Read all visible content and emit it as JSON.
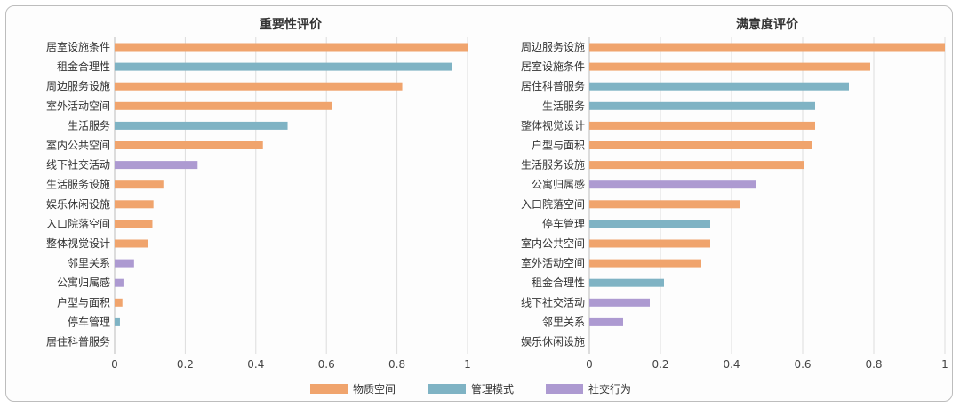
{
  "colors": {
    "物质空间": "#f0a46d",
    "管理模式": "#7fb3c4",
    "社交行为": "#ad9ad1"
  },
  "legend": [
    {
      "label": "物质空间",
      "color": "#f0a46d"
    },
    {
      "label": "管理模式",
      "color": "#7fb3c4"
    },
    {
      "label": "社交行为",
      "color": "#ad9ad1"
    }
  ],
  "chart_data": [
    {
      "type": "bar",
      "orientation": "horizontal",
      "title": "重要性评价",
      "xlim": [
        0,
        1
      ],
      "ticks": [
        "0",
        "0.2",
        "0.4",
        "0.6",
        "0.8",
        "1"
      ],
      "grid": true,
      "categories": [
        "居室设施条件",
        "租金合理性",
        "周边服务设施",
        "室外活动空间",
        "生活服务",
        "室内公共空间",
        "线下社交活动",
        "生活服务设施",
        "娱乐休闲设施",
        "入口院落空间",
        "整体视觉设计",
        "邻里关系",
        "公寓归属感",
        "户型与面积",
        "停车管理",
        "居住科普服务"
      ],
      "values": [
        1.0,
        0.955,
        0.815,
        0.615,
        0.49,
        0.42,
        0.235,
        0.138,
        0.11,
        0.107,
        0.095,
        0.055,
        0.025,
        0.022,
        0.015,
        0.0
      ],
      "groups": [
        "物质空间",
        "管理模式",
        "物质空间",
        "物质空间",
        "管理模式",
        "物质空间",
        "社交行为",
        "物质空间",
        "物质空间",
        "物质空间",
        "物质空间",
        "社交行为",
        "社交行为",
        "物质空间",
        "管理模式",
        "管理模式"
      ]
    },
    {
      "type": "bar",
      "orientation": "horizontal",
      "title": "满意度评价",
      "xlim": [
        0,
        1
      ],
      "ticks": [
        "0",
        "0.2",
        "0.4",
        "0.6",
        "0.8",
        "1"
      ],
      "grid": true,
      "categories": [
        "周边服务设施",
        "居室设施条件",
        "居住科普服务",
        "生活服务",
        "整体视觉设计",
        "户型与面积",
        "生活服务设施",
        "公寓归属感",
        "入口院落空间",
        "停车管理",
        "室内公共空间",
        "室外活动空间",
        "租金合理性",
        "线下社交活动",
        "邻里关系",
        "娱乐休闲设施"
      ],
      "values": [
        1.0,
        0.79,
        0.73,
        0.635,
        0.635,
        0.625,
        0.605,
        0.47,
        0.425,
        0.34,
        0.34,
        0.315,
        0.21,
        0.17,
        0.095,
        0.0
      ],
      "groups": [
        "物质空间",
        "物质空间",
        "管理模式",
        "管理模式",
        "物质空间",
        "物质空间",
        "物质空间",
        "社交行为",
        "物质空间",
        "管理模式",
        "物质空间",
        "物质空间",
        "管理模式",
        "社交行为",
        "社交行为",
        "物质空间"
      ]
    }
  ]
}
